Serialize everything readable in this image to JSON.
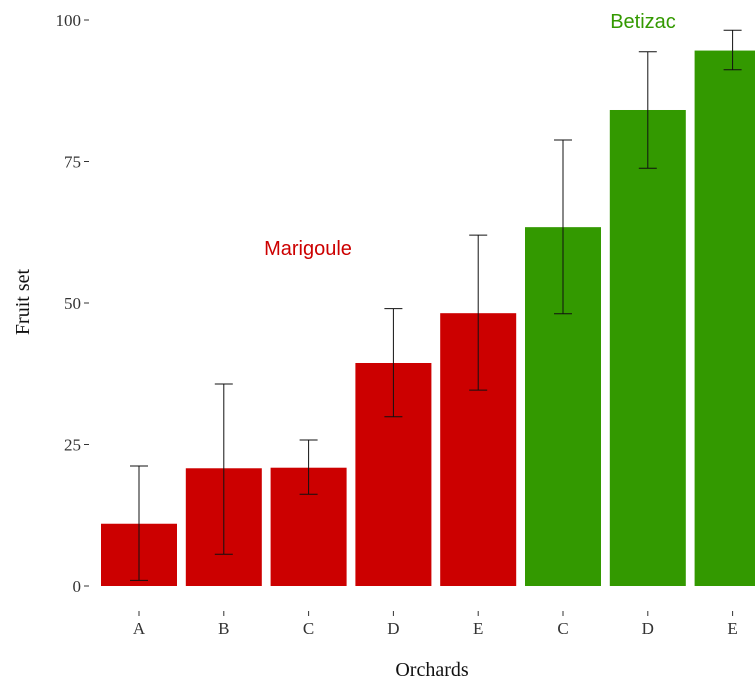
{
  "chart_data": {
    "type": "bar",
    "title": "",
    "xlabel": "Orchards",
    "ylabel": "Fruit set",
    "ylim": [
      0,
      100
    ],
    "yticks": [
      0,
      25,
      50,
      75,
      100
    ],
    "grid": false,
    "legend": "none",
    "groups": [
      {
        "label": "Marigoule",
        "color": "#cc0000"
      },
      {
        "label": "Betizac",
        "color": "#339900"
      }
    ],
    "bars": [
      {
        "category": "A",
        "group": 0,
        "value": 11.0,
        "err_low": 1.0,
        "err_high": 21.2
      },
      {
        "category": "B",
        "group": 0,
        "value": 20.8,
        "err_low": 5.6,
        "err_high": 35.7
      },
      {
        "category": "C",
        "group": 0,
        "value": 20.9,
        "err_low": 16.2,
        "err_high": 25.8
      },
      {
        "category": "D",
        "group": 0,
        "value": 39.4,
        "err_low": 29.9,
        "err_high": 49.0
      },
      {
        "category": "E",
        "group": 0,
        "value": 48.2,
        "err_low": 34.6,
        "err_high": 62.0
      },
      {
        "category": "C",
        "group": 1,
        "value": 63.4,
        "err_low": 48.1,
        "err_high": 78.8
      },
      {
        "category": "D",
        "group": 1,
        "value": 84.1,
        "err_low": 73.8,
        "err_high": 94.4
      },
      {
        "category": "E",
        "group": 1,
        "value": 94.6,
        "err_low": 91.2,
        "err_high": 98.2
      }
    ]
  }
}
